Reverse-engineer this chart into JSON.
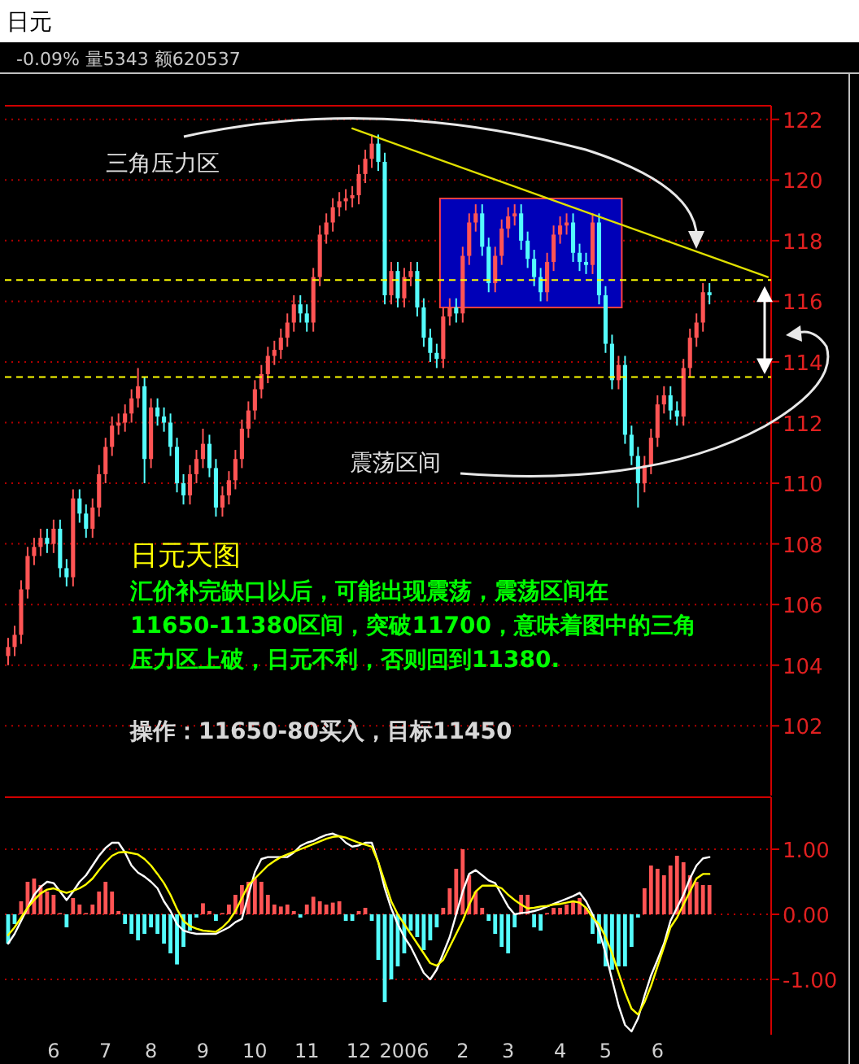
{
  "chart_data": [
    {
      "type": "candlestick",
      "title": "日元",
      "subtitle": "-0.09% 量5343 额620537",
      "categories": [
        null,
        null,
        null,
        null,
        null,
        null,
        null,
        null,
        null,
        null,
        null,
        null,
        null,
        null,
        null,
        null,
        null,
        null,
        null,
        null,
        null,
        null,
        null,
        null,
        null,
        null,
        null,
        null,
        null,
        null,
        null,
        null,
        null,
        null,
        null,
        null,
        null,
        null,
        null,
        null,
        null,
        null,
        null,
        null,
        null,
        null,
        null,
        null,
        null,
        null,
        null,
        null,
        null,
        null,
        null,
        null,
        null,
        null,
        null,
        null,
        null,
        null,
        null,
        null,
        null,
        null,
        null,
        null,
        null,
        null,
        null,
        null,
        null,
        null,
        null,
        null,
        null,
        null,
        null,
        null,
        null,
        null,
        null,
        null,
        null,
        null,
        null,
        null,
        null,
        null,
        null,
        null,
        null,
        null,
        null,
        null,
        null,
        null,
        null,
        null,
        null,
        null,
        null,
        null,
        null,
        null,
        null,
        null,
        null,
        null,
        null,
        null,
        null,
        null,
        null,
        null,
        null,
        null
      ],
      "ohlc": [
        [
          104.3,
          104.9,
          104.0,
          104.6
        ],
        [
          104.6,
          105.3,
          104.3,
          105.0
        ],
        [
          105.0,
          106.8,
          104.7,
          106.5
        ],
        [
          106.5,
          107.9,
          106.2,
          107.6
        ],
        [
          107.6,
          108.2,
          107.3,
          107.9
        ],
        [
          107.9,
          108.5,
          107.6,
          108.2
        ],
        [
          108.2,
          108.5,
          107.7,
          108.0
        ],
        [
          108.0,
          108.8,
          107.7,
          108.5
        ],
        [
          108.5,
          108.8,
          106.9,
          107.2
        ],
        [
          107.2,
          107.5,
          106.6,
          106.9
        ],
        [
          106.9,
          109.8,
          106.6,
          109.5
        ],
        [
          109.5,
          109.8,
          108.7,
          109.0
        ],
        [
          109.0,
          109.3,
          108.2,
          108.5
        ],
        [
          108.5,
          109.5,
          108.2,
          109.2
        ],
        [
          109.2,
          110.6,
          108.9,
          110.3
        ],
        [
          110.3,
          111.5,
          110.0,
          111.2
        ],
        [
          111.2,
          112.2,
          110.9,
          111.9
        ],
        [
          111.9,
          112.3,
          111.6,
          112.0
        ],
        [
          112.0,
          112.6,
          111.7,
          112.3
        ],
        [
          112.3,
          113.1,
          112.0,
          112.8
        ],
        [
          112.8,
          113.8,
          112.5,
          113.2
        ],
        [
          113.2,
          113.5,
          110.0,
          110.8
        ],
        [
          110.8,
          112.8,
          110.5,
          112.5
        ],
        [
          112.5,
          112.8,
          111.9,
          112.2
        ],
        [
          112.2,
          112.5,
          111.7,
          112.0
        ],
        [
          112.0,
          112.3,
          110.9,
          111.2
        ],
        [
          111.2,
          111.5,
          109.7,
          110.0
        ],
        [
          110.0,
          110.3,
          109.3,
          109.6
        ],
        [
          109.6,
          110.6,
          109.3,
          110.3
        ],
        [
          110.3,
          111.1,
          110.0,
          110.8
        ],
        [
          110.8,
          111.8,
          110.5,
          111.3
        ],
        [
          111.3,
          111.6,
          110.2,
          110.5
        ],
        [
          110.5,
          110.8,
          108.9,
          109.2
        ],
        [
          109.2,
          109.9,
          108.9,
          109.6
        ],
        [
          109.6,
          110.4,
          109.3,
          110.1
        ],
        [
          110.1,
          111.1,
          109.8,
          110.8
        ],
        [
          110.8,
          112.1,
          110.5,
          111.8
        ],
        [
          111.8,
          112.7,
          111.5,
          112.4
        ],
        [
          112.4,
          113.4,
          112.1,
          113.1
        ],
        [
          113.1,
          113.9,
          112.8,
          113.6
        ],
        [
          113.6,
          114.5,
          113.3,
          114.2
        ],
        [
          114.2,
          114.7,
          113.9,
          114.4
        ],
        [
          114.4,
          115.1,
          114.1,
          114.8
        ],
        [
          114.8,
          115.6,
          114.5,
          115.3
        ],
        [
          115.3,
          116.2,
          115.0,
          115.9
        ],
        [
          115.9,
          116.2,
          115.3,
          115.6
        ],
        [
          115.6,
          115.9,
          115.0,
          115.3
        ],
        [
          115.3,
          117.1,
          115.0,
          116.8
        ],
        [
          116.8,
          118.5,
          116.5,
          118.2
        ],
        [
          118.2,
          118.9,
          117.9,
          118.6
        ],
        [
          118.6,
          119.4,
          118.3,
          119.1
        ],
        [
          119.1,
          119.6,
          118.8,
          119.3
        ],
        [
          119.3,
          119.7,
          119.0,
          119.4
        ],
        [
          119.4,
          119.8,
          119.1,
          119.5
        ],
        [
          119.5,
          120.5,
          119.2,
          120.2
        ],
        [
          120.2,
          121.0,
          119.9,
          120.7
        ],
        [
          120.7,
          121.5,
          120.4,
          121.2
        ],
        [
          121.2,
          121.5,
          120.3,
          120.6
        ],
        [
          120.6,
          120.9,
          115.9,
          116.2
        ],
        [
          116.2,
          117.3,
          115.9,
          117.0
        ],
        [
          117.0,
          117.3,
          115.8,
          116.1
        ],
        [
          116.1,
          117.1,
          115.8,
          116.8
        ],
        [
          116.8,
          117.3,
          116.5,
          117.0
        ],
        [
          117.0,
          117.3,
          115.5,
          115.8
        ],
        [
          115.8,
          116.1,
          114.5,
          114.8
        ],
        [
          114.8,
          115.1,
          114.0,
          114.3
        ],
        [
          114.3,
          114.6,
          113.8,
          114.1
        ],
        [
          114.1,
          115.8,
          113.8,
          115.5
        ],
        [
          115.5,
          116.1,
          115.2,
          115.8
        ],
        [
          115.8,
          116.1,
          115.3,
          115.6
        ],
        [
          115.6,
          117.8,
          115.3,
          117.5
        ],
        [
          117.5,
          118.9,
          117.2,
          118.6
        ],
        [
          118.6,
          119.2,
          118.3,
          118.9
        ],
        [
          118.9,
          119.2,
          117.5,
          117.8
        ],
        [
          117.8,
          118.1,
          116.3,
          116.6
        ],
        [
          116.6,
          117.8,
          116.3,
          117.5
        ],
        [
          117.5,
          118.7,
          117.2,
          118.4
        ],
        [
          118.4,
          119.1,
          118.1,
          118.8
        ],
        [
          118.8,
          119.2,
          118.5,
          118.9
        ],
        [
          118.9,
          119.2,
          117.7,
          118.0
        ],
        [
          118.0,
          118.3,
          117.1,
          117.4
        ],
        [
          117.4,
          117.7,
          116.5,
          116.8
        ],
        [
          116.8,
          117.1,
          116.0,
          116.3
        ],
        [
          116.3,
          117.6,
          116.0,
          117.3
        ],
        [
          117.3,
          118.5,
          117.0,
          118.2
        ],
        [
          118.2,
          118.8,
          117.9,
          118.5
        ],
        [
          118.5,
          118.9,
          118.2,
          118.6
        ],
        [
          118.6,
          118.9,
          117.3,
          117.6
        ],
        [
          117.6,
          117.9,
          117.0,
          117.3
        ],
        [
          117.3,
          117.6,
          116.9,
          117.2
        ],
        [
          117.2,
          118.9,
          116.9,
          118.6
        ],
        [
          118.6,
          118.9,
          115.9,
          116.2
        ],
        [
          116.2,
          116.5,
          114.3,
          114.6
        ],
        [
          114.6,
          114.9,
          113.1,
          113.4
        ],
        [
          113.4,
          114.2,
          113.1,
          113.9
        ],
        [
          113.9,
          114.2,
          111.3,
          111.6
        ],
        [
          111.6,
          111.9,
          110.6,
          110.9
        ],
        [
          110.9,
          111.2,
          109.2,
          110.0
        ],
        [
          110.0,
          110.9,
          109.7,
          110.6
        ],
        [
          110.6,
          111.8,
          110.3,
          111.5
        ],
        [
          111.5,
          112.9,
          111.2,
          112.6
        ],
        [
          112.6,
          113.2,
          112.3,
          112.9
        ],
        [
          112.9,
          113.2,
          112.1,
          112.4
        ],
        [
          112.4,
          112.7,
          111.9,
          112.2
        ],
        [
          112.2,
          114.1,
          111.9,
          113.8
        ],
        [
          113.8,
          115.1,
          113.5,
          114.8
        ],
        [
          114.8,
          115.6,
          114.5,
          115.3
        ],
        [
          115.3,
          116.6,
          115.0,
          116.3
        ],
        [
          116.3,
          116.6,
          115.9,
          116.2
        ],
        null,
        null,
        null,
        null,
        null,
        null,
        null,
        null,
        null
      ],
      "series": [
        {
          "type": "line",
          "color": "#e0e000",
          "values": [
            null,
            null,
            null,
            null,
            null,
            null,
            null,
            null,
            null,
            null,
            null,
            null,
            null,
            null,
            null,
            null,
            null,
            null,
            null,
            null,
            null,
            null,
            null,
            null,
            null,
            null,
            null,
            null,
            null,
            null,
            null,
            null,
            null,
            null,
            null,
            null,
            null,
            null,
            null,
            null,
            null,
            null,
            null,
            null,
            null,
            null,
            null,
            null,
            null,
            null,
            null,
            null,
            null,
            121.7,
            null,
            null,
            null,
            null,
            null,
            null,
            null,
            null,
            null,
            null,
            null,
            null,
            null,
            null,
            null,
            null,
            null,
            null,
            null,
            null,
            null,
            null,
            null,
            null,
            null,
            null,
            null,
            null,
            null,
            null,
            null,
            null,
            null,
            null,
            null,
            null,
            null,
            null,
            null,
            null,
            null,
            null,
            null,
            null,
            null,
            null,
            null,
            null,
            null,
            null,
            null,
            null,
            null,
            null,
            null,
            null,
            null,
            null,
            null,
            null,
            null,
            null,
            null,
            116.8
          ]
        }
      ],
      "ref_lines": [
        {
          "axis": "y",
          "value": 116.7,
          "color": "#ffff00",
          "line_style": "dashed"
        },
        {
          "axis": "y",
          "value": 113.5,
          "color": "#ffff00",
          "line_style": "dashed"
        }
      ],
      "ylim": [
        99.7,
        122.45
      ],
      "yticks": [
        102,
        104,
        106,
        108,
        110,
        112,
        114,
        116,
        118,
        120,
        122
      ],
      "grid": "y",
      "tick_labels": "y",
      "annotations": [
        "三角压力区",
        "震荡区间",
        "日元天图",
        "汇价补完缺口以后，可能出现震荡，震荡区间在",
        "11650-11380区间，突破11700，意味着图中的三角",
        "压力区上破，日元不利，否则回到11380.",
        "操作：11650-80买入，目标11450"
      ]
    },
    {
      "type": "bar",
      "categories": [
        null,
        null,
        null,
        null,
        null,
        null,
        null,
        "6",
        null,
        null,
        null,
        null,
        null,
        null,
        null,
        "7",
        null,
        null,
        null,
        null,
        null,
        null,
        "8",
        null,
        null,
        null,
        null,
        null,
        null,
        null,
        "9",
        null,
        null,
        null,
        null,
        null,
        null,
        null,
        "10",
        null,
        null,
        null,
        null,
        null,
        null,
        null,
        "11",
        null,
        null,
        null,
        null,
        null,
        null,
        null,
        "12",
        null,
        null,
        null,
        null,
        null,
        null,
        "2006",
        null,
        null,
        null,
        null,
        null,
        null,
        null,
        null,
        "2",
        null,
        null,
        null,
        null,
        null,
        null,
        "3",
        null,
        null,
        null,
        null,
        null,
        null,
        null,
        "4",
        null,
        null,
        null,
        null,
        null,
        null,
        "5",
        null,
        null,
        null,
        null,
        null,
        null,
        null,
        "6",
        null,
        null,
        null,
        null,
        null,
        null,
        null,
        null,
        null,
        null,
        null,
        null,
        null,
        null,
        null,
        null,
        null
      ],
      "series": [
        {
          "type": "bar",
          "values": [
            -0.45,
            -0.15,
            0.2,
            0.5,
            0.55,
            0.45,
            0.35,
            0.3,
            0.02,
            -0.2,
            0.25,
            0.15,
            0.02,
            0.15,
            0.35,
            0.5,
            0.35,
            0.05,
            -0.15,
            -0.3,
            -0.4,
            -0.3,
            -0.2,
            -0.3,
            -0.45,
            -0.6,
            -0.77,
            -0.5,
            -0.25,
            -0.05,
            0.17,
            0.05,
            -0.1,
            0.02,
            0.15,
            0.3,
            0.45,
            0.5,
            0.55,
            0.5,
            0.3,
            0.15,
            0.12,
            0.15,
            0.05,
            -0.05,
            0.15,
            0.27,
            0.2,
            0.15,
            0.18,
            0.2,
            -0.1,
            -0.1,
            0.05,
            0.1,
            -0.1,
            -0.7,
            -1.35,
            -1.0,
            -0.8,
            -0.6,
            -0.25,
            -0.35,
            -0.55,
            -0.4,
            -0.2,
            0.1,
            0.4,
            0.7,
            1.0,
            0.6,
            0.35,
            0.1,
            -0.1,
            -0.3,
            -0.5,
            -0.6,
            -0.2,
            0.3,
            0.3,
            -0.2,
            -0.25,
            0.02,
            0.1,
            0.1,
            0.15,
            0.2,
            0.25,
            0.1,
            -0.3,
            -0.45,
            -0.8,
            -0.85,
            -0.8,
            -0.8,
            -0.5,
            -0.05,
            0.4,
            0.75,
            0.7,
            0.6,
            0.75,
            0.9,
            0.8,
            0.6,
            0.5,
            0.45,
            0.45,
            null,
            null,
            null,
            null,
            null,
            null,
            null,
            null,
            null
          ],
          "colors": [
            "#54fcfc",
            "#54fcfc",
            "#ff5454",
            "#ff5454",
            "#ff5454",
            "#ff5454",
            "#ff5454",
            "#ff5454",
            "#ff5454",
            "#54fcfc",
            "#ff5454",
            "#ff5454",
            "#ff5454",
            "#ff5454",
            "#ff5454",
            "#ff5454",
            "#ff5454",
            "#ff5454",
            "#54fcfc",
            "#54fcfc",
            "#54fcfc",
            "#54fcfc",
            "#54fcfc",
            "#54fcfc",
            "#54fcfc",
            "#54fcfc",
            "#54fcfc",
            "#54fcfc",
            "#54fcfc",
            "#54fcfc",
            "#ff5454",
            "#ff5454",
            "#54fcfc",
            "#ff5454",
            "#ff5454",
            "#ff5454",
            "#ff5454",
            "#ff5454",
            "#ff5454",
            "#ff5454",
            "#ff5454",
            "#ff5454",
            "#ff5454",
            "#ff5454",
            "#ff5454",
            "#54fcfc",
            "#ff5454",
            "#ff5454",
            "#ff5454",
            "#ff5454",
            "#ff5454",
            "#ff5454",
            "#54fcfc",
            "#54fcfc",
            "#ff5454",
            "#ff5454",
            "#54fcfc",
            "#54fcfc",
            "#54fcfc",
            "#54fcfc",
            "#54fcfc",
            "#54fcfc",
            "#54fcfc",
            "#54fcfc",
            "#54fcfc",
            "#54fcfc",
            "#54fcfc",
            "#ff5454",
            "#ff5454",
            "#ff5454",
            "#ff5454",
            "#ff5454",
            "#ff5454",
            "#ff5454",
            "#54fcfc",
            "#54fcfc",
            "#54fcfc",
            "#54fcfc",
            "#54fcfc",
            "#ff5454",
            "#ff5454",
            "#54fcfc",
            "#54fcfc",
            "#ff5454",
            "#ff5454",
            "#ff5454",
            "#ff5454",
            "#ff5454",
            "#ff5454",
            "#ff5454",
            "#54fcfc",
            "#54fcfc",
            "#54fcfc",
            "#54fcfc",
            "#54fcfc",
            "#54fcfc",
            "#54fcfc",
            "#54fcfc",
            "#ff5454",
            "#ff5454",
            "#ff5454",
            "#ff5454",
            "#ff5454",
            "#ff5454",
            "#ff5454",
            "#ff5454",
            "#ff5454",
            "#ff5454",
            "#ff5454",
            null,
            null,
            null,
            null,
            null,
            null,
            null,
            null,
            null
          ]
        },
        {
          "type": "line",
          "color": "#ffffff",
          "values": [
            -0.45,
            -0.3,
            -0.1,
            0.1,
            0.3,
            0.42,
            0.5,
            0.48,
            0.35,
            0.22,
            0.35,
            0.5,
            0.6,
            0.75,
            0.9,
            1.02,
            1.1,
            1.1,
            0.95,
            0.75,
            0.64,
            0.58,
            0.5,
            0.4,
            0.2,
            0.05,
            -0.15,
            -0.25,
            -0.28,
            -0.3,
            -0.3,
            -0.3,
            -0.3,
            -0.25,
            -0.2,
            -0.12,
            -0.07,
            0.3,
            0.65,
            0.85,
            0.88,
            0.88,
            0.88,
            0.88,
            0.95,
            1.05,
            1.1,
            1.13,
            1.18,
            1.22,
            1.24,
            1.2,
            1.1,
            1.04,
            1.06,
            1.1,
            1.1,
            0.8,
            0.4,
            0.09,
            -0.15,
            -0.35,
            -0.5,
            -0.7,
            -0.9,
            -1.0,
            -0.85,
            -0.6,
            -0.35,
            0.0,
            0.35,
            0.62,
            0.68,
            0.6,
            0.52,
            0.48,
            0.3,
            0.12,
            0.0,
            0.02,
            0.03,
            0.05,
            0.08,
            0.12,
            0.16,
            0.2,
            0.24,
            0.28,
            0.33,
            0.2,
            0.0,
            -0.25,
            -0.6,
            -1.0,
            -1.4,
            -1.7,
            -1.8,
            -1.6,
            -1.25,
            -0.94,
            -0.7,
            -0.45,
            -0.1,
            0.1,
            0.3,
            0.55,
            0.75,
            0.86,
            0.88,
            null,
            null,
            null,
            null,
            null,
            null,
            null,
            null,
            null
          ]
        },
        {
          "type": "line",
          "color": "#ffff00",
          "values": [
            -0.32,
            -0.2,
            -0.05,
            0.1,
            0.22,
            0.32,
            0.38,
            0.4,
            0.36,
            0.33,
            0.36,
            0.4,
            0.46,
            0.55,
            0.68,
            0.8,
            0.9,
            0.95,
            0.96,
            0.94,
            0.92,
            0.85,
            0.75,
            0.62,
            0.48,
            0.3,
            0.08,
            -0.1,
            -0.18,
            -0.22,
            -0.25,
            -0.26,
            -0.27,
            -0.2,
            -0.1,
            0.05,
            0.25,
            0.45,
            0.55,
            0.65,
            0.75,
            0.82,
            0.88,
            0.92,
            0.96,
            1.0,
            1.04,
            1.08,
            1.12,
            1.16,
            1.19,
            1.2,
            1.18,
            1.14,
            1.1,
            1.07,
            1.04,
            0.8,
            0.5,
            0.2,
            0.0,
            -0.15,
            -0.3,
            -0.45,
            -0.6,
            -0.75,
            -0.79,
            -0.7,
            -0.5,
            -0.3,
            -0.1,
            0.15,
            0.35,
            0.44,
            0.44,
            0.44,
            0.4,
            0.3,
            0.22,
            0.15,
            0.09,
            0.1,
            0.12,
            0.13,
            0.15,
            0.16,
            0.18,
            0.2,
            0.18,
            0.1,
            -0.05,
            -0.15,
            -0.35,
            -0.6,
            -0.9,
            -1.2,
            -1.45,
            -1.54,
            -1.35,
            -1.1,
            -0.8,
            -0.5,
            -0.2,
            -0.05,
            0.15,
            0.35,
            0.55,
            0.62,
            0.62,
            null,
            null,
            null,
            null,
            null,
            null,
            null,
            null,
            null
          ]
        }
      ],
      "ylim": [
        -1.85,
        1.8
      ],
      "yticks": [
        {
          "value": 1,
          "label": "1.00"
        },
        {
          "value": 0,
          "label": "0.00"
        },
        {
          "value": -1,
          "label": "-1.00"
        }
      ],
      "grid": "y"
    }
  ]
}
